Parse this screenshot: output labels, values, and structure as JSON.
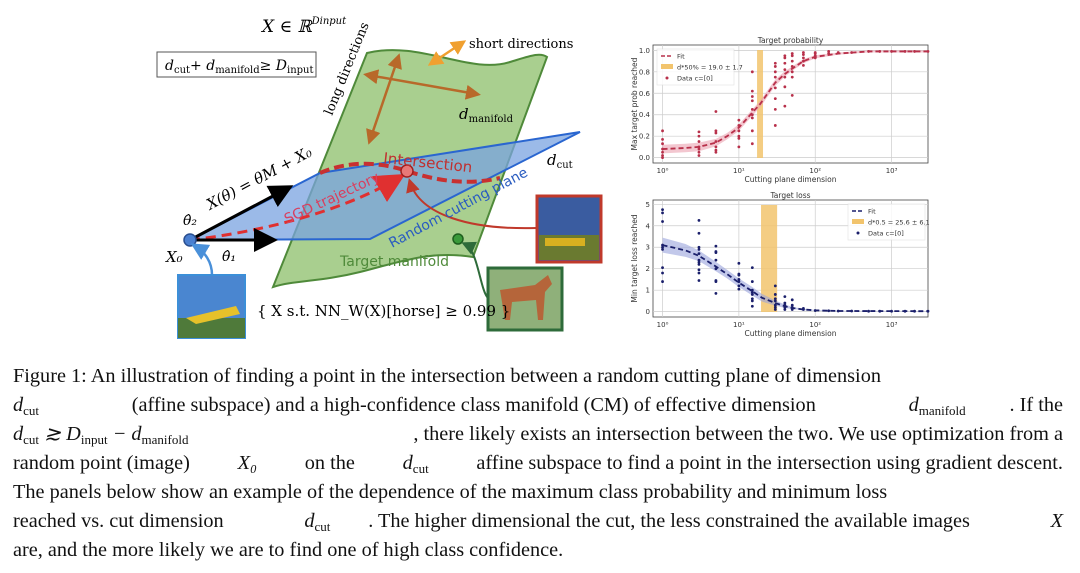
{
  "diagram": {
    "space_label": "X ∈ ℝ",
    "space_sup": "Dinput",
    "condition_box": "dcut + dmanifold ≥ Dinput",
    "cond_parts": [
      "d",
      "cut",
      "+ d",
      "manifold",
      "≥ D",
      "input"
    ],
    "long_directions": "long directions",
    "short_directions": "short directions",
    "d_manifold": [
      "d",
      "manifold"
    ],
    "d_cut": [
      "d",
      "cut"
    ],
    "intersection": "Intersection",
    "sgd_trajectory": "SGD trajectory",
    "random_cutting_plane": "Random cutting plane",
    "target_manifold": "Target manifold",
    "param_formula": "X(θ) = θM + X₀",
    "theta2": "θ̂₂",
    "theta1": "θ̂₁",
    "x0": "X₀",
    "set_notation": "{ X s.t. NN_W(X)[horse] ≥ 0.99 }",
    "colors": {
      "manifold": "#a9cf8f",
      "manifold_edge": "#4f8a3a",
      "plane": "#7aa3e0",
      "plane_edge": "#2a66d0",
      "red": "#d33a3a",
      "orange": "#b8692a"
    }
  },
  "chart_data": [
    {
      "type": "scatter",
      "title": "Target probability",
      "xlabel": "Cutting plane dimension",
      "ylabel": "Max target prob reached",
      "xscale": "log",
      "xlim": [
        0.75,
        3000
      ],
      "ylim": [
        -0.05,
        1.05
      ],
      "xticks": [
        "10⁰",
        "10¹",
        "10²",
        "10³"
      ],
      "xtick_values": [
        1,
        10,
        100,
        1000
      ],
      "yticks": [
        "0.0",
        "0.2",
        "0.4",
        "0.6",
        "0.8",
        "1.0"
      ],
      "ytick_values": [
        0,
        0.2,
        0.4,
        0.6,
        0.8,
        1.0
      ],
      "grid": true,
      "legend_position": "top-left",
      "legend": [
        "Fit",
        "d*50% = 19.0 ± 1.7",
        "Data c=[0]"
      ],
      "band": [
        17.3,
        20.7
      ],
      "band_color": "#f2c46d",
      "color": "#b8304a",
      "fill": "#eba1b0",
      "fit_x": [
        1,
        2,
        3,
        5,
        7,
        10,
        15,
        19,
        25,
        30,
        40,
        50,
        70,
        100,
        200,
        500,
        1000,
        3000
      ],
      "fit_y": [
        0.08,
        0.09,
        0.1,
        0.14,
        0.2,
        0.28,
        0.42,
        0.5,
        0.62,
        0.7,
        0.78,
        0.83,
        0.9,
        0.94,
        0.97,
        0.99,
        0.99,
        0.99
      ],
      "fit_err": [
        0.04,
        0.04,
        0.04,
        0.035,
        0.03,
        0.03,
        0.03,
        0.03,
        0.03,
        0.03,
        0.025,
        0.02,
        0.02,
        0.015,
        0.01,
        0.01,
        0.01,
        0.01
      ],
      "points": [
        [
          1,
          0
        ],
        [
          1,
          0.02
        ],
        [
          1,
          0.05
        ],
        [
          1,
          0.08
        ],
        [
          1,
          0.13
        ],
        [
          1,
          0.17
        ],
        [
          1,
          0.25
        ],
        [
          3,
          0.02
        ],
        [
          3,
          0.05
        ],
        [
          3,
          0.08
        ],
        [
          3,
          0.1
        ],
        [
          3,
          0.15
        ],
        [
          3,
          0.2
        ],
        [
          3,
          0.24
        ],
        [
          5,
          0.05
        ],
        [
          5,
          0.07
        ],
        [
          5,
          0.1
        ],
        [
          5,
          0.15
        ],
        [
          5,
          0.23
        ],
        [
          5,
          0.25
        ],
        [
          5,
          0.43
        ],
        [
          10,
          0.1
        ],
        [
          10,
          0.18
        ],
        [
          10,
          0.2
        ],
        [
          10,
          0.25
        ],
        [
          10,
          0.3
        ],
        [
          10,
          0.35
        ],
        [
          15,
          0.13
        ],
        [
          15,
          0.25
        ],
        [
          15,
          0.37
        ],
        [
          15,
          0.4
        ],
        [
          15,
          0.45
        ],
        [
          15,
          0.53
        ],
        [
          15,
          0.57
        ],
        [
          15,
          0.62
        ],
        [
          15,
          0.8
        ],
        [
          30,
          0.3
        ],
        [
          30,
          0.45
        ],
        [
          30,
          0.55
        ],
        [
          30,
          0.65
        ],
        [
          30,
          0.75
        ],
        [
          30,
          0.8
        ],
        [
          30,
          0.85
        ],
        [
          30,
          0.88
        ],
        [
          40,
          0.48
        ],
        [
          40,
          0.66
        ],
        [
          40,
          0.75
        ],
        [
          40,
          0.82
        ],
        [
          40,
          0.88
        ],
        [
          40,
          0.93
        ],
        [
          40,
          0.95
        ],
        [
          50,
          0.58
        ],
        [
          50,
          0.75
        ],
        [
          50,
          0.8
        ],
        [
          50,
          0.85
        ],
        [
          50,
          0.9
        ],
        [
          50,
          0.95
        ],
        [
          50,
          0.97
        ],
        [
          70,
          0.86
        ],
        [
          70,
          0.9
        ],
        [
          70,
          0.93
        ],
        [
          70,
          0.96
        ],
        [
          70,
          0.98
        ],
        [
          100,
          0.93
        ],
        [
          100,
          0.95
        ],
        [
          100,
          0.97
        ],
        [
          100,
          0.98
        ],
        [
          150,
          0.97
        ],
        [
          150,
          0.99
        ],
        [
          200,
          0.98
        ],
        [
          300,
          0.98
        ],
        [
          500,
          0.99
        ],
        [
          700,
          0.99
        ],
        [
          1000,
          0.99
        ],
        [
          1500,
          0.99
        ],
        [
          2000,
          0.99
        ],
        [
          3000,
          0.99
        ]
      ]
    },
    {
      "type": "scatter",
      "title": "Target loss",
      "xlabel": "Cutting plane dimension",
      "ylabel": "Min target loss reached",
      "xscale": "log",
      "xlim": [
        0.75,
        3000
      ],
      "ylim": [
        -0.25,
        5.2
      ],
      "xticks": [
        "10⁰",
        "10¹",
        "10²",
        "10³"
      ],
      "xtick_values": [
        1,
        10,
        100,
        1000
      ],
      "yticks": [
        "0",
        "1",
        "2",
        "3",
        "4",
        "5"
      ],
      "ytick_values": [
        0,
        1,
        2,
        3,
        4,
        5
      ],
      "grid": true,
      "legend_position": "top-right",
      "legend": [
        "Fit",
        "d*0.5 = 25.6 ± 6.1",
        "Data c=[0]"
      ],
      "band": [
        19.5,
        31.7
      ],
      "band_color": "#f2c46d",
      "color": "#1a1f6b",
      "fill": "#9aa3dc",
      "fit_x": [
        1,
        2,
        3,
        5,
        7,
        10,
        15,
        20,
        30,
        40,
        50,
        70,
        100,
        200,
        3000
      ],
      "fit_y": [
        3.1,
        2.85,
        2.6,
        2.1,
        1.75,
        1.35,
        0.95,
        0.65,
        0.4,
        0.25,
        0.17,
        0.1,
        0.06,
        0.03,
        0.02
      ],
      "fit_err": [
        0.35,
        0.3,
        0.25,
        0.22,
        0.2,
        0.2,
        0.2,
        0.18,
        0.12,
        0.08,
        0.05,
        0.03,
        0.02,
        0.01,
        0.01
      ],
      "points": [
        [
          1,
          1.4
        ],
        [
          1,
          1.8
        ],
        [
          1,
          2.05
        ],
        [
          1,
          2.9
        ],
        [
          1,
          3.0
        ],
        [
          1,
          3.1
        ],
        [
          1,
          4.2
        ],
        [
          1,
          4.6
        ],
        [
          1,
          4.75
        ],
        [
          3,
          1.45
        ],
        [
          3,
          1.8
        ],
        [
          3,
          1.95
        ],
        [
          3,
          2.2
        ],
        [
          3,
          2.3
        ],
        [
          3,
          2.4
        ],
        [
          3,
          2.7
        ],
        [
          3,
          2.9
        ],
        [
          3,
          3.0
        ],
        [
          3,
          3.65
        ],
        [
          3,
          4.25
        ],
        [
          5,
          0.85
        ],
        [
          5,
          1.4
        ],
        [
          5,
          1.45
        ],
        [
          5,
          2.0
        ],
        [
          5,
          2.4
        ],
        [
          5,
          2.75
        ],
        [
          5,
          2.8
        ],
        [
          5,
          3.05
        ],
        [
          10,
          1.05
        ],
        [
          10,
          1.2
        ],
        [
          10,
          1.4
        ],
        [
          10,
          1.5
        ],
        [
          10,
          1.7
        ],
        [
          10,
          1.75
        ],
        [
          10,
          2.25
        ],
        [
          15,
          0.25
        ],
        [
          15,
          0.5
        ],
        [
          15,
          0.6
        ],
        [
          15,
          0.8
        ],
        [
          15,
          0.9
        ],
        [
          15,
          1.0
        ],
        [
          15,
          1.4
        ],
        [
          15,
          2.05
        ],
        [
          30,
          0.1
        ],
        [
          30,
          0.2
        ],
        [
          30,
          0.3
        ],
        [
          30,
          0.5
        ],
        [
          30,
          0.6
        ],
        [
          30,
          0.8
        ],
        [
          30,
          1.2
        ],
        [
          40,
          0.1
        ],
        [
          40,
          0.2
        ],
        [
          40,
          0.3
        ],
        [
          40,
          0.4
        ],
        [
          40,
          0.7
        ],
        [
          50,
          0.1
        ],
        [
          50,
          0.2
        ],
        [
          50,
          0.3
        ],
        [
          50,
          0.55
        ],
        [
          70,
          0.1
        ],
        [
          70,
          0.15
        ],
        [
          100,
          0.05
        ],
        [
          150,
          0.04
        ],
        [
          200,
          0.03
        ],
        [
          300,
          0.03
        ],
        [
          500,
          0.02
        ],
        [
          700,
          0.02
        ],
        [
          1000,
          0.02
        ],
        [
          1500,
          0.02
        ],
        [
          2000,
          0.02
        ],
        [
          3000,
          0.02
        ]
      ]
    }
  ],
  "caption": {
    "l1": "Figure 1: An illustration of finding a point in the intersection between a random cutting plane of dimension",
    "l2a": "(affine subspace) and a high-confidence class manifold (CM) of effective dimension",
    "l2b": ". If the",
    "l3a": "≳ D",
    "l3b": "− d",
    "l3c": ", there likely exists an intersection between the two. We use optimization from a",
    "l4a": "random point (image)",
    "l4b": "on the",
    "l4c": "affine subspace to find a point in the intersection using gradient descent.",
    "l5": "The panels below show an example of the dependence of the maximum class probability and minimum loss",
    "l6a": "reached vs. cut dimension",
    "l6b": ". The higher dimensional the cut, the less constrained the available images",
    "l7": "are, and the more likely we are to find one of high class confidence.",
    "d": "d",
    "cut": "cut",
    "manifold": "manifold",
    "input": "input",
    "x0": "X₀",
    "x": "X",
    "zero": "0"
  }
}
